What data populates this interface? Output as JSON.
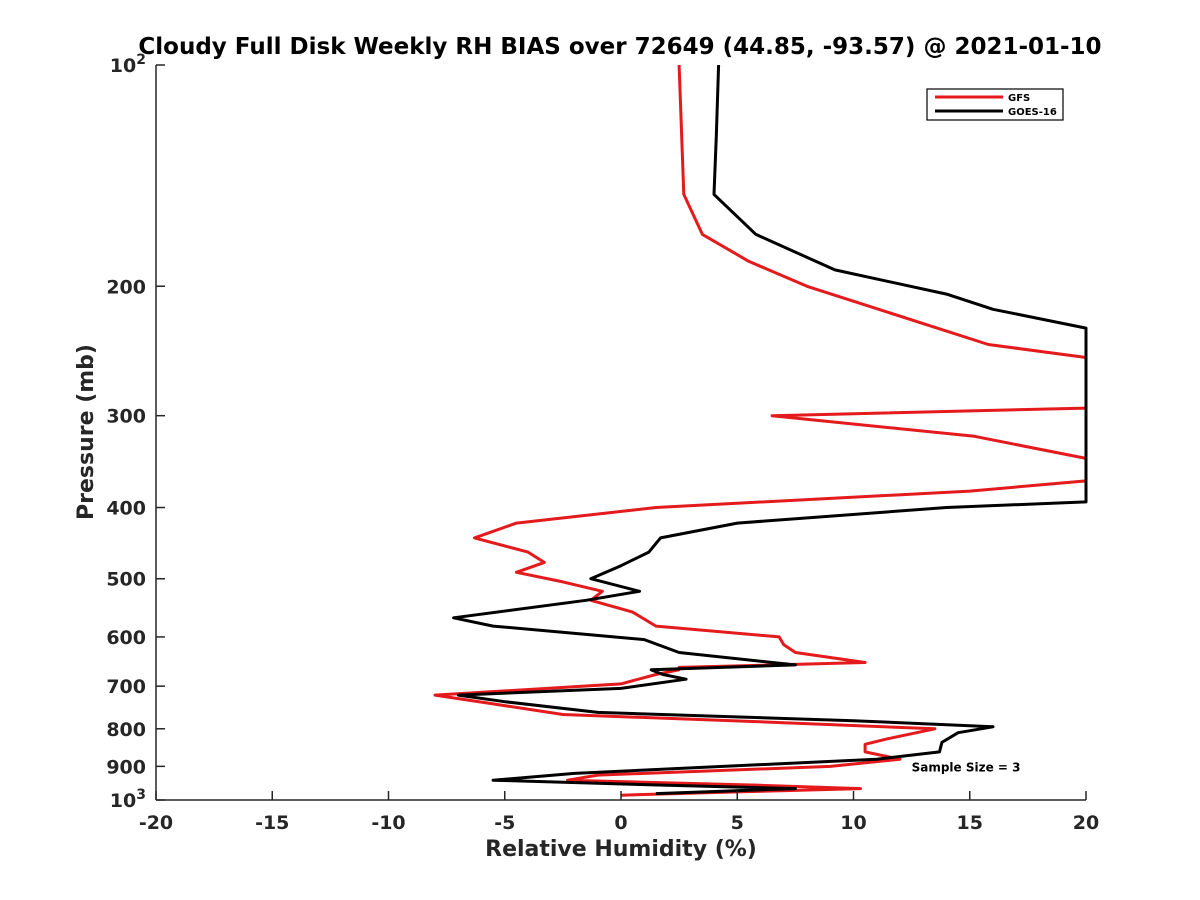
{
  "chart_data": {
    "type": "line",
    "title": "Cloudy Full Disk Weekly RH BIAS over 72649 (44.85, -93.57) @ 2021-01-10",
    "xlabel": "Relative Humidity (%)",
    "ylabel": "Pressure (mb)",
    "xlim": [
      -20,
      20
    ],
    "ylim": [
      100,
      1000
    ],
    "y_scale": "log",
    "y_reversed": true,
    "grid": false,
    "legend_position": "top-right",
    "x_ticks": [
      -20,
      -15,
      -10,
      -5,
      0,
      5,
      10,
      15,
      20
    ],
    "y_ticks": [
      {
        "value": 100,
        "base": "10",
        "exp": "2"
      },
      {
        "value": 200,
        "label": "200"
      },
      {
        "value": 300,
        "label": "300"
      },
      {
        "value": 400,
        "label": "400"
      },
      {
        "value": 500,
        "label": "500"
      },
      {
        "value": 600,
        "label": "600"
      },
      {
        "value": 700,
        "label": "700"
      },
      {
        "value": 800,
        "label": "800"
      },
      {
        "value": 900,
        "label": "900"
      },
      {
        "value": 1000,
        "base": "10",
        "exp": "3"
      }
    ],
    "annotation": {
      "text": "Sample Size = 3",
      "x": 12.5,
      "y": 900
    },
    "series": [
      {
        "name": "GFS",
        "color": "#e41a1c",
        "points": [
          [
            2.5,
            100
          ],
          [
            2.7,
            150
          ],
          [
            3.5,
            170
          ],
          [
            5.5,
            185
          ],
          [
            8,
            200
          ],
          [
            15.8,
            240
          ],
          [
            20,
            250
          ],
          [
            20,
            293
          ],
          [
            6.5,
            300
          ],
          [
            15.2,
            320
          ],
          [
            20,
            343
          ],
          [
            20,
            368
          ],
          [
            15,
            380
          ],
          [
            1.5,
            400
          ],
          [
            -4.5,
            420
          ],
          [
            -6.3,
            440
          ],
          [
            -4,
            460
          ],
          [
            -3.3,
            475
          ],
          [
            -4.5,
            490
          ],
          [
            -2.5,
            505
          ],
          [
            -0.8,
            520
          ],
          [
            -1.3,
            535
          ],
          [
            0.5,
            555
          ],
          [
            1.5,
            580
          ],
          [
            6.8,
            600
          ],
          [
            7,
            615
          ],
          [
            7.5,
            630
          ],
          [
            10.5,
            650
          ],
          [
            2.5,
            660
          ],
          [
            2.5,
            665
          ],
          [
            1.5,
            675
          ],
          [
            0,
            695
          ],
          [
            -8,
            720
          ],
          [
            -5.5,
            740
          ],
          [
            -2.5,
            765
          ],
          [
            7,
            785
          ],
          [
            13.5,
            800
          ],
          [
            11.5,
            825
          ],
          [
            10.5,
            840
          ],
          [
            10.5,
            860
          ],
          [
            12,
            880
          ],
          [
            9,
            900
          ],
          [
            -1,
            925
          ],
          [
            -2.3,
            940
          ],
          [
            6,
            955
          ],
          [
            10.3,
            965
          ],
          [
            5,
            975
          ],
          [
            0,
            985
          ]
        ]
      },
      {
        "name": "GOES-16",
        "color": "#000000",
        "points": [
          [
            4.2,
            100
          ],
          [
            4.1,
            125
          ],
          [
            4,
            150
          ],
          [
            5.8,
            170
          ],
          [
            9.2,
            190
          ],
          [
            14,
            205
          ],
          [
            16,
            215
          ],
          [
            20,
            228
          ],
          [
            20,
            393
          ],
          [
            14,
            400
          ],
          [
            5,
            420
          ],
          [
            1.7,
            440
          ],
          [
            1.2,
            460
          ],
          [
            0,
            480
          ],
          [
            -1.3,
            500
          ],
          [
            0.8,
            520
          ],
          [
            -1.5,
            535
          ],
          [
            -7.2,
            565
          ],
          [
            -5.5,
            580
          ],
          [
            1,
            605
          ],
          [
            2.5,
            630
          ],
          [
            6.5,
            650
          ],
          [
            7.5,
            655
          ],
          [
            1.3,
            665
          ],
          [
            1.8,
            675
          ],
          [
            2.8,
            685
          ],
          [
            0,
            705
          ],
          [
            -7,
            720
          ],
          [
            -5,
            735
          ],
          [
            -1,
            760
          ],
          [
            10,
            780
          ],
          [
            16,
            795
          ],
          [
            14.5,
            810
          ],
          [
            13.8,
            835
          ],
          [
            13.7,
            860
          ],
          [
            11,
            880
          ],
          [
            -2,
            920
          ],
          [
            -5.5,
            940
          ],
          [
            2,
            955
          ],
          [
            7.5,
            965
          ],
          [
            1.5,
            980
          ]
        ]
      }
    ]
  }
}
